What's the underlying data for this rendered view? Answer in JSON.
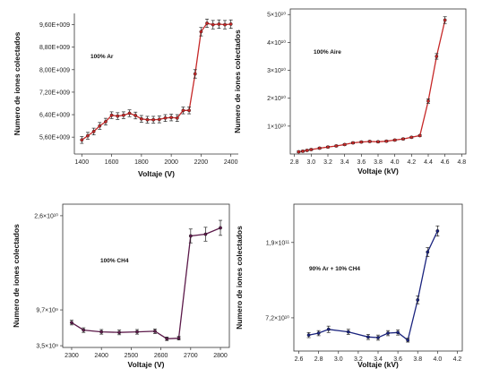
{
  "chart_data": [
    {
      "type": "line",
      "annotation": "100% Ar",
      "xlabel": "Voltaje (V)",
      "ylabel": "Numero de iones colectados",
      "xlim": [
        1350,
        2450
      ],
      "ylim": [
        5000000000,
        10000000000
      ],
      "x_ticks": [
        1400,
        1600,
        1800,
        2000,
        2200,
        2400
      ],
      "x_tick_labels": [
        "1400",
        "1600",
        "1800",
        "2000",
        "2200",
        "2400"
      ],
      "y_ticks": [
        5600000000,
        6400000000,
        7200000000,
        8000000000,
        8800000000,
        9600000000
      ],
      "y_tick_labels": [
        "5,60E+009",
        "6,40E+009",
        "7,20E+009",
        "8,00E+009",
        "8,80E+009",
        "9,60E+009"
      ],
      "color": "#c62828",
      "series": [
        {
          "x": [
            1400,
            1440,
            1480,
            1520,
            1560,
            1600,
            1640,
            1680,
            1720,
            1760,
            1800,
            1840,
            1880,
            1920,
            1960,
            2000,
            2040,
            2080,
            2120,
            2160,
            2200,
            2240,
            2280,
            2320,
            2360,
            2400
          ],
          "y": [
            5500000000,
            5650000000,
            5800000000,
            6000000000,
            6150000000,
            6380000000,
            6350000000,
            6380000000,
            6450000000,
            6370000000,
            6250000000,
            6220000000,
            6220000000,
            6230000000,
            6280000000,
            6300000000,
            6280000000,
            6550000000,
            6550000000,
            7850000000,
            9350000000,
            9650000000,
            9600000000,
            9620000000,
            9600000000,
            9620000000
          ],
          "yerr": [
            120000000,
            120000000,
            120000000,
            120000000,
            120000000,
            120000000,
            120000000,
            120000000,
            120000000,
            120000000,
            120000000,
            120000000,
            120000000,
            120000000,
            120000000,
            120000000,
            120000000,
            120000000,
            120000000,
            150000000,
            150000000,
            150000000,
            150000000,
            150000000,
            150000000,
            150000000
          ]
        }
      ]
    },
    {
      "type": "line",
      "annotation": "100% Aire",
      "xlabel": "Voltaje (kV)",
      "ylabel": "Numero de iones colectados",
      "xlim": [
        2.75,
        4.85
      ],
      "ylim": [
        0,
        52000000000
      ],
      "x_ticks": [
        2.8,
        3.0,
        3.2,
        3.4,
        3.6,
        3.8,
        4.0,
        4.2,
        4.4,
        4.6,
        4.8
      ],
      "x_tick_labels": [
        "2.8",
        "3.0",
        "3.2",
        "3.4",
        "3.6",
        "3.8",
        "4.0",
        "4.2",
        "4.4",
        "4.6",
        "4.8"
      ],
      "y_ticks": [
        10000000000,
        20000000000,
        30000000000,
        40000000000,
        50000000000
      ],
      "y_tick_labels": [
        "1×10¹⁰",
        "2×10¹⁰",
        "3×10¹⁰",
        "4×10¹⁰",
        "5×10¹⁰"
      ],
      "color": "#c62828",
      "series": [
        {
          "x": [
            2.85,
            2.9,
            2.95,
            3.0,
            3.1,
            3.2,
            3.3,
            3.4,
            3.5,
            3.6,
            3.7,
            3.8,
            3.9,
            4.0,
            4.1,
            4.2,
            4.3,
            4.4,
            4.5,
            4.6
          ],
          "y": [
            800000000,
            1000000000,
            1300000000,
            1600000000,
            2100000000,
            2500000000,
            2900000000,
            3400000000,
            4000000000,
            4300000000,
            4500000000,
            4400000000,
            4600000000,
            5000000000,
            5400000000,
            6000000000,
            6600000000,
            19000000000,
            35000000000,
            48000000000
          ],
          "yerr": [
            300000000,
            300000000,
            300000000,
            300000000,
            300000000,
            300000000,
            300000000,
            300000000,
            300000000,
            300000000,
            300000000,
            300000000,
            300000000,
            300000000,
            300000000,
            300000000,
            300000000,
            800000000,
            1000000000,
            1200000000
          ]
        }
      ]
    },
    {
      "type": "line",
      "annotation": "100% CH4",
      "xlabel": "Voltaje (V)",
      "ylabel": "Numero de iones colectados",
      "xlim": [
        2270,
        2830
      ],
      "ylim": [
        3200000000,
        28000000000
      ],
      "x_ticks": [
        2300,
        2400,
        2500,
        2600,
        2700,
        2800
      ],
      "x_tick_labels": [
        "2300",
        "2400",
        "2500",
        "2600",
        "2700",
        "2800"
      ],
      "y_ticks": [
        3500000000,
        9700000000,
        26000000000
      ],
      "y_tick_labels": [
        "3,5×10⁹",
        "9,7×10⁹",
        "2,6×10¹⁰"
      ],
      "color": "#5c1a4a",
      "series": [
        {
          "x": [
            2300,
            2340,
            2400,
            2460,
            2520,
            2580,
            2620,
            2660,
            2700,
            2750,
            2800
          ],
          "y": [
            7500000000,
            6200000000,
            5900000000,
            5800000000,
            5900000000,
            6000000000,
            4700000000,
            4800000000,
            22500000000,
            22800000000,
            23900000000
          ],
          "yerr": [
            400000000,
            400000000,
            400000000,
            400000000,
            400000000,
            400000000,
            300000000,
            300000000,
            1200000000,
            1200000000,
            1300000000
          ]
        }
      ]
    },
    {
      "type": "line",
      "annotation": "90% Ar + 10% CH4",
      "xlabel": "Voltaje (kV)",
      "ylabel": "Numero de iones colectados",
      "xlim": [
        2.55,
        4.25
      ],
      "ylim": [
        20000000000,
        250000000000
      ],
      "x_ticks": [
        2.6,
        2.8,
        3.0,
        3.2,
        3.4,
        3.6,
        3.8,
        4.0,
        4.2
      ],
      "x_tick_labels": [
        "2.6",
        "2.8",
        "3.0",
        "3.2",
        "3.4",
        "3.6",
        "3.8",
        "4.0",
        "4.2"
      ],
      "y_ticks": [
        72000000000,
        190000000000
      ],
      "y_tick_labels": [
        "7,2×10¹⁰",
        "1,9×10¹¹"
      ],
      "color": "#1a237e",
      "series": [
        {
          "x": [
            2.7,
            2.8,
            2.9,
            3.1,
            3.3,
            3.4,
            3.5,
            3.6,
            3.7,
            3.8,
            3.9,
            4.0
          ],
          "y": [
            45000000000,
            48000000000,
            54000000000,
            50000000000,
            42000000000,
            41000000000,
            48000000000,
            49000000000,
            37000000000,
            100000000000,
            175000000000,
            208000000000
          ],
          "yerr": [
            4000000000,
            4000000000,
            5000000000,
            4000000000,
            4000000000,
            4000000000,
            4000000000,
            4000000000,
            3000000000,
            6000000000,
            7000000000,
            8000000000
          ]
        }
      ]
    }
  ]
}
